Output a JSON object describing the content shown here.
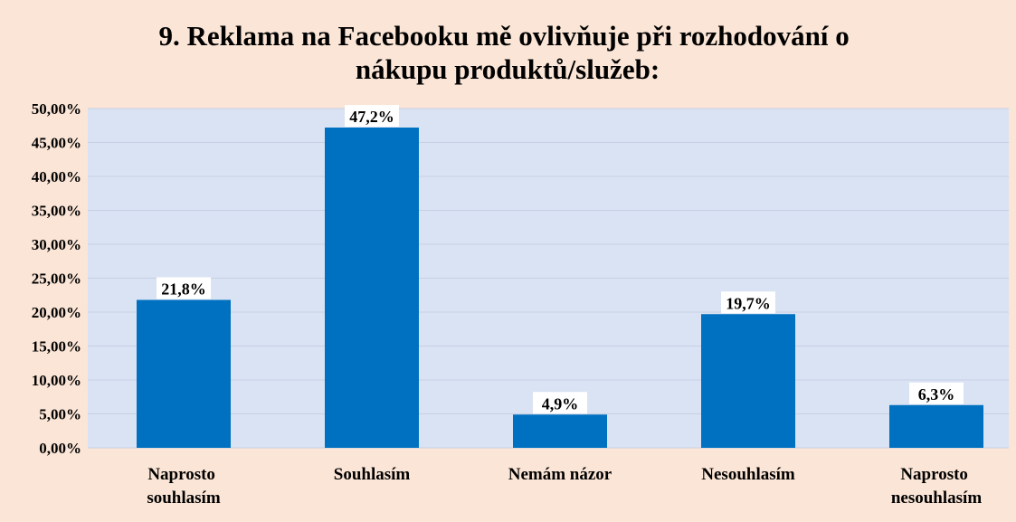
{
  "chart_data": {
    "type": "bar",
    "title": "9. Reklama na Facebooku mě ovlivňuje při rozhodování o\nnákupu produktů/služeb:",
    "categories": [
      "Naprosto\nsouhlasím",
      "Souhlasím",
      "Nemám názor",
      "Nesouhlasím",
      "Naprosto\nnesouhlasím"
    ],
    "values": [
      21.8,
      47.2,
      4.9,
      19.7,
      6.3
    ],
    "value_labels": [
      "21,8%",
      "47,2%",
      "4,9%",
      "19,7%",
      "6,3%"
    ],
    "color": "#0070c0",
    "ylim": [
      0,
      50
    ],
    "yticks": [
      {
        "value": 0,
        "label": "0,00%"
      },
      {
        "value": 5,
        "label": "5,00%"
      },
      {
        "value": 10,
        "label": "10,00%"
      },
      {
        "value": 15,
        "label": "15,00%"
      },
      {
        "value": 20,
        "label": "20,00%"
      },
      {
        "value": 25,
        "label": "25,00%"
      },
      {
        "value": 30,
        "label": "30,00%"
      },
      {
        "value": 35,
        "label": "35,00%"
      },
      {
        "value": 40,
        "label": "40,00%"
      },
      {
        "value": 45,
        "label": "45,00%"
      },
      {
        "value": 50,
        "label": "50,00%"
      }
    ],
    "grid": true
  }
}
